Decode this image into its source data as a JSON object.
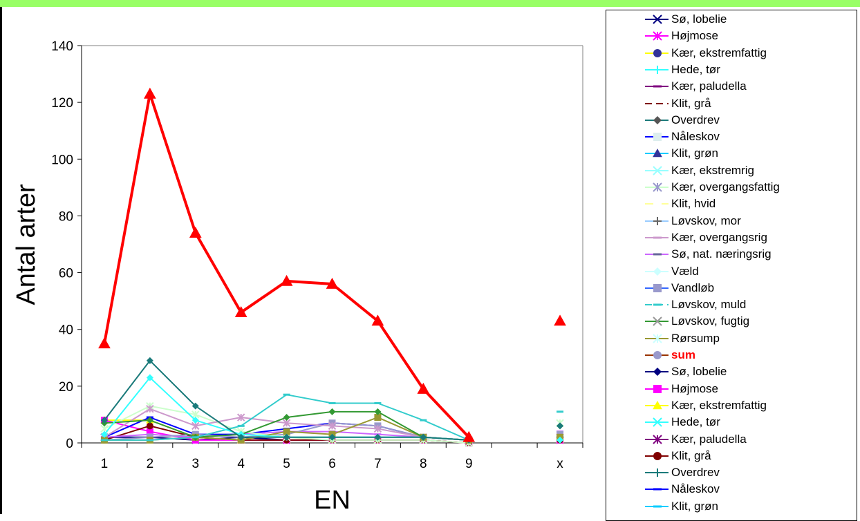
{
  "chart_data": {
    "type": "line",
    "xlabel": "EN",
    "ylabel": "Antal arter",
    "categories": [
      "1",
      "2",
      "3",
      "4",
      "5",
      "6",
      "7",
      "8",
      "9",
      "",
      "x"
    ],
    "yticks": [
      "0",
      "20",
      "40",
      "60",
      "80",
      "100",
      "120",
      "140"
    ],
    "ylim": [
      0,
      140
    ],
    "grid": "horizontal at 140 only",
    "legend_position": "right",
    "series": [
      {
        "name": "sum",
        "color": "#ff0000",
        "marker": "triangle",
        "width": 4,
        "values": [
          35,
          123,
          74,
          46,
          57,
          56,
          43,
          19,
          2,
          null,
          43
        ]
      },
      {
        "name": "Overdrev",
        "color": "#1a7a7a",
        "marker": "diamond",
        "width": 2,
        "values": [
          8,
          29,
          13,
          2,
          2,
          2,
          2,
          2,
          1,
          null,
          6
        ]
      },
      {
        "name": "Hede, tør",
        "color": "#33ffff",
        "marker": "diamond",
        "width": 2,
        "values": [
          3,
          23,
          8,
          3,
          2,
          2,
          2,
          2,
          1,
          null,
          1
        ]
      },
      {
        "name": "Løvskov, muld",
        "color": "#33cccc",
        "marker": "dash",
        "width": 2,
        "values": [
          1,
          1,
          2,
          6,
          17,
          14,
          14,
          8,
          1,
          null,
          11
        ]
      },
      {
        "name": "Løvskov, fugtig",
        "color": "#339933",
        "marker": "diamond",
        "width": 2,
        "values": [
          7,
          8,
          2,
          3,
          9,
          11,
          11,
          2,
          1,
          null,
          6
        ]
      },
      {
        "name": "Rørsump",
        "color": "#999933",
        "marker": "square",
        "width": 2,
        "values": [
          1,
          1,
          2,
          1,
          4,
          3,
          9,
          2,
          1,
          null,
          2
        ]
      },
      {
        "name": "Kær, overgangsrig",
        "color": "#cc99cc",
        "marker": "star",
        "width": 2,
        "values": [
          2,
          12,
          6,
          9,
          7,
          6,
          5,
          2,
          1,
          null,
          2
        ]
      },
      {
        "name": "Kær, overgangsfattig",
        "color": "#ccffcc",
        "marker": "star",
        "width": 2,
        "values": [
          5,
          13,
          10,
          4,
          2,
          1,
          1,
          1,
          0,
          null,
          7
        ]
      },
      {
        "name": "Vandløb",
        "color": "#9999cc",
        "marker": "square",
        "width": 2,
        "values": [
          1,
          2,
          3,
          2,
          3,
          7,
          6,
          2,
          1,
          null,
          3
        ]
      },
      {
        "name": "Sø, nat. næringsrig",
        "color": "#cc66ff",
        "marker": "dash",
        "width": 2,
        "values": [
          2,
          3,
          2,
          3,
          4,
          4,
          3,
          2,
          1,
          null,
          4
        ]
      },
      {
        "name": "Nåleskov",
        "color": "#0000ff",
        "marker": "dash",
        "width": 2,
        "values": [
          2,
          9,
          3,
          3,
          5,
          7,
          6,
          2,
          1,
          null,
          2
        ]
      },
      {
        "name": "Klit, grå",
        "color": "#800000",
        "marker": "circle",
        "width": 2,
        "values": [
          1,
          6,
          2,
          1,
          1,
          1,
          1,
          1,
          0,
          null,
          1
        ]
      },
      {
        "name": "Højmose",
        "color": "#ff00ff",
        "marker": "square",
        "width": 2,
        "values": [
          8,
          4,
          1,
          1,
          1,
          1,
          1,
          1,
          0,
          null,
          1
        ]
      },
      {
        "name": "Kær, ekstremfattig",
        "color": "#ffff00",
        "marker": "triangle",
        "width": 2,
        "values": [
          8,
          8,
          2,
          1,
          1,
          1,
          1,
          1,
          0,
          null,
          1
        ]
      },
      {
        "name": "Sø, lobelie",
        "color": "#000080",
        "marker": "x",
        "width": 2,
        "values": [
          2,
          2,
          1,
          2,
          1,
          1,
          1,
          1,
          0,
          null,
          1
        ]
      }
    ]
  },
  "legend": [
    {
      "label": "Sø, lobelie",
      "color": "#000080",
      "marker": "x",
      "dash": false
    },
    {
      "label": "Højmose",
      "color": "#ff00ff",
      "marker": "star",
      "dash": false
    },
    {
      "label": "Kær, ekstremfattig",
      "color": "#ffff00",
      "marker": "circle",
      "marker_color": "#333399",
      "dash": false
    },
    {
      "label": "Hede, tør",
      "color": "#33ffff",
      "marker": "plus",
      "dash": false
    },
    {
      "label": "Kær, paludella",
      "color": "#800080",
      "marker": "dash",
      "dash": false
    },
    {
      "label": "Klit, grå",
      "color": "#800000",
      "marker": "none",
      "dash": true
    },
    {
      "label": "Overdrev",
      "color": "#1a7a7a",
      "marker": "diamond",
      "marker_color": "#555555",
      "dash": false
    },
    {
      "label": "Nåleskov",
      "color": "#0000ff",
      "marker": "square",
      "marker_color": "#ddeeee",
      "dash": false
    },
    {
      "label": "Klit, grøn",
      "color": "#00ccff",
      "marker": "triangle",
      "marker_color": "#333399",
      "dash": false
    },
    {
      "label": "Kær, ekstremrig",
      "color": "#99ffff",
      "marker": "x",
      "dash": false
    },
    {
      "label": "Kær, overgangsfattig",
      "color": "#ccffcc",
      "marker": "star",
      "marker_color": "#9999cc",
      "dash": false
    },
    {
      "label": "Klit, hvid",
      "color": "#ffff99",
      "marker": "circle",
      "marker_color": "#ffffff",
      "dash": false
    },
    {
      "label": "Løvskov, mor",
      "color": "#99ccff",
      "marker": "plus",
      "marker_color": "#666666",
      "dash": false
    },
    {
      "label": "Kær, overgangsrig",
      "color": "#cc99cc",
      "marker": "dash",
      "dash": false
    },
    {
      "label": "Sø, nat. næringsrig",
      "color": "#cc66ff",
      "marker": "dash",
      "marker_color": "#666699",
      "dash": false
    },
    {
      "label": "Væld",
      "color": "#ccffff",
      "marker": "diamond",
      "dash": false
    },
    {
      "label": "Vandløb",
      "color": "#3366ff",
      "marker": "square",
      "marker_color": "#9999cc",
      "dash": false
    },
    {
      "label": "Løvskov, muld",
      "color": "#33cccc",
      "marker": "dash",
      "dash": true
    },
    {
      "label": "Løvskov, fugtig",
      "color": "#339933",
      "marker": "x",
      "marker_color": "#999999",
      "dash": false
    },
    {
      "label": "Rørsump",
      "color": "#999933",
      "marker": "star",
      "marker_color": "#ccffff",
      "dash": false
    },
    {
      "label": "sum",
      "color": "#993300",
      "marker": "circle",
      "marker_color": "#9999cc",
      "dash": false,
      "emph": true
    },
    {
      "label": "Sø, lobelie",
      "color": "#000080",
      "marker": "diamond",
      "marker_color": "#000080",
      "dash": false
    },
    {
      "label": "Højmose",
      "color": "#ff00ff",
      "marker": "square",
      "dash": false
    },
    {
      "label": "Kær, ekstremfattig",
      "color": "#ffff00",
      "marker": "triangle",
      "dash": false
    },
    {
      "label": "Hede, tør",
      "color": "#33ffff",
      "marker": "x",
      "dash": false
    },
    {
      "label": "Kær, paludella",
      "color": "#800080",
      "marker": "star",
      "dash": false
    },
    {
      "label": "Klit, grå",
      "color": "#800000",
      "marker": "circle",
      "dash": false
    },
    {
      "label": "Overdrev",
      "color": "#1a7a7a",
      "marker": "plus",
      "dash": false
    },
    {
      "label": "Nåleskov",
      "color": "#0000ff",
      "marker": "dash",
      "dash": false
    },
    {
      "label": "Klit, grøn",
      "color": "#00ccff",
      "marker": "dash",
      "dash": false
    }
  ]
}
